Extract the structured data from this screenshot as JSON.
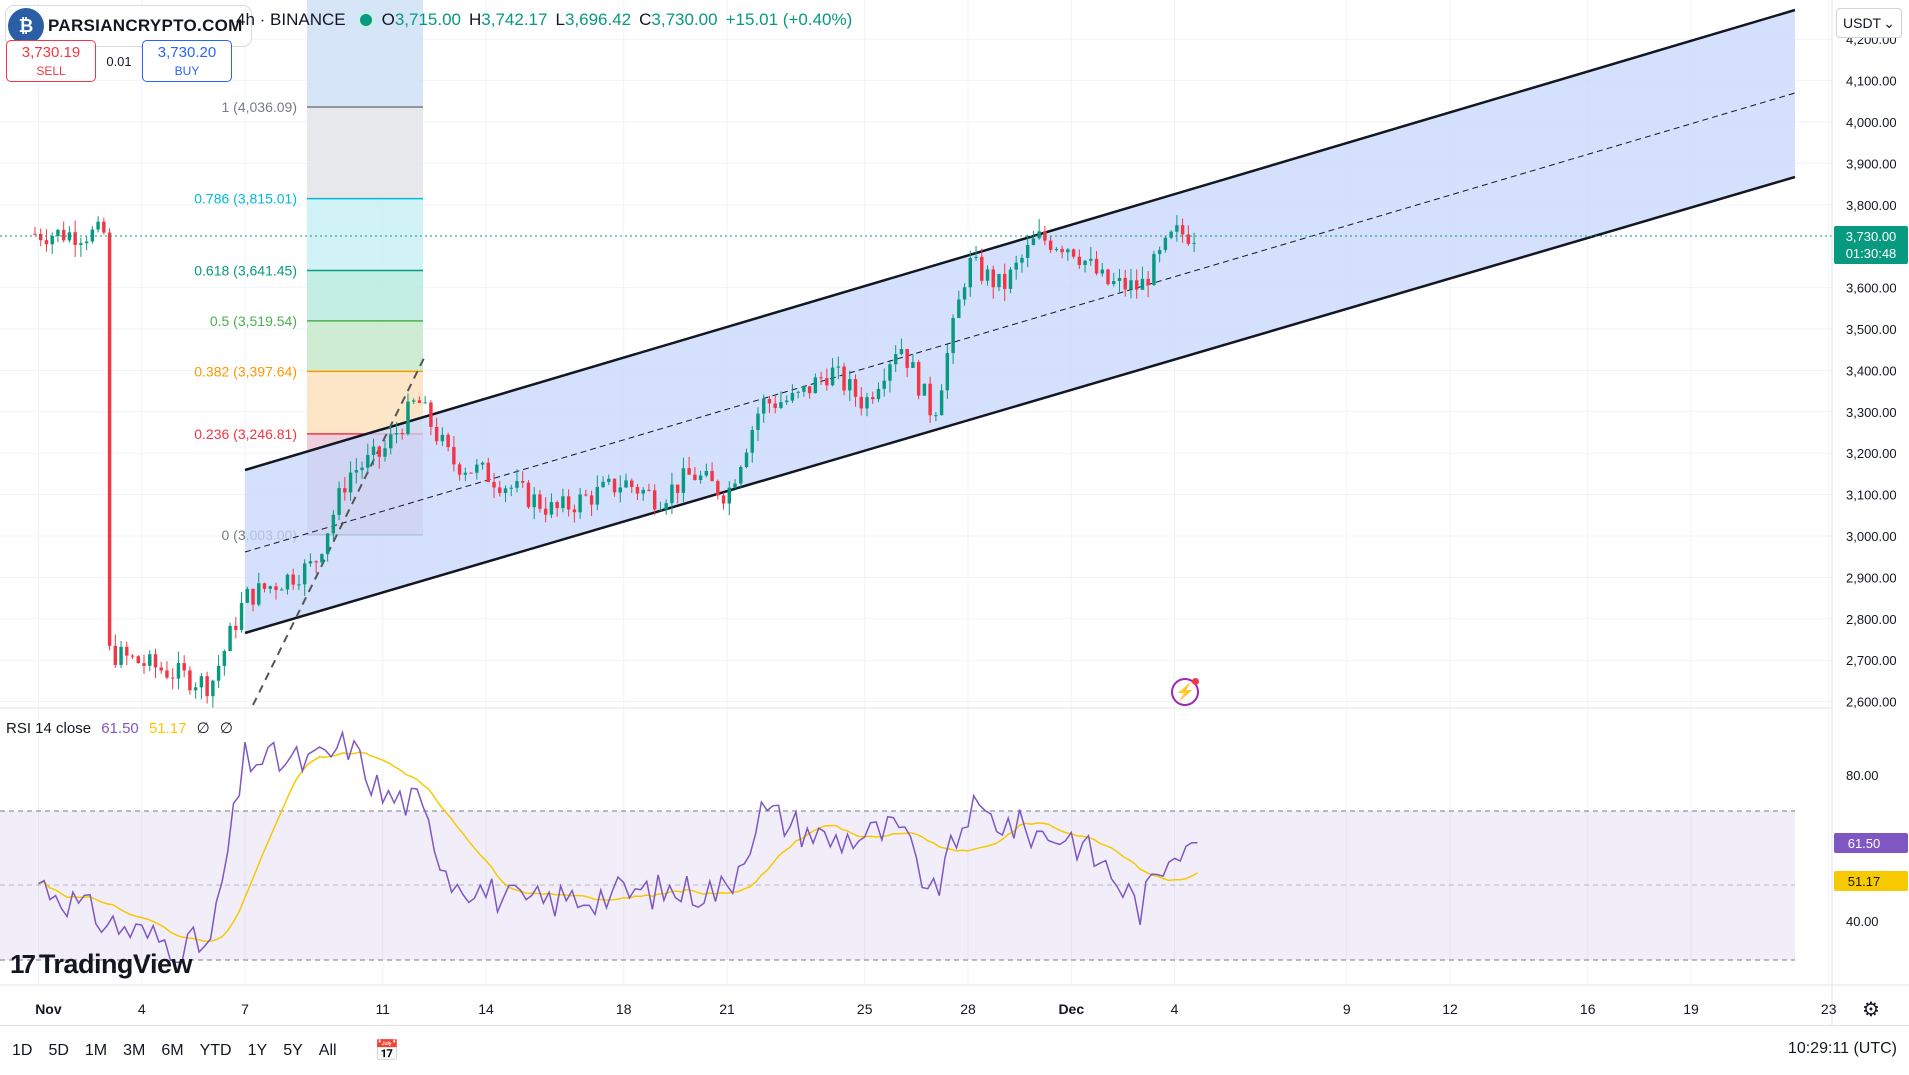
{
  "symbol_header": {
    "interval": "4h · BINANCE",
    "open_label": "O",
    "open": "3,715.00",
    "high_label": "H",
    "high": "3,742.17",
    "low_label": "L",
    "low": "3,696.42",
    "close_label": "C",
    "close": "3,730.00",
    "change": "+15.01 (+0.40%)"
  },
  "watermark_logo": {
    "text": "PARSIANCRYPTO.COM"
  },
  "trade_panel": {
    "sell_price": "3,730.19",
    "sell_label": "SELL",
    "spread": "0.01",
    "buy_price": "3,730.20",
    "buy_label": "BUY"
  },
  "currency_selector": {
    "label": "USDT",
    "icon": "chevron-down-icon"
  },
  "price_axis": {
    "labels": [
      "4,200.00",
      "4,100.00",
      "4,000.00",
      "3,900.00",
      "3,800.00",
      "3,600.00",
      "3,500.00",
      "3,400.00",
      "3,300.00",
      "3,200.00",
      "3,100.00",
      "3,000.00",
      "2,900.00",
      "2,800.00",
      "2,700.00",
      "2,600.00"
    ],
    "current_price": "3,730.00",
    "countdown": "01:30:48"
  },
  "fibonacci": {
    "levels": [
      {
        "label": "1 (4,036.09)",
        "price": 4036.09,
        "color": "#787b86"
      },
      {
        "label": "0.786 (3,815.01)",
        "price": 3815.01,
        "color": "#00bcd4"
      },
      {
        "label": "0.618 (3,641.45)",
        "price": 3641.45,
        "color": "#089981"
      },
      {
        "label": "0.5 (3,519.54)",
        "price": 3519.54,
        "color": "#4caf50"
      },
      {
        "label": "0.382 (3,397.64)",
        "price": 3397.64,
        "color": "#ff9800"
      },
      {
        "label": "0.236 (3,246.81)",
        "price": 3246.81,
        "color": "#f23645"
      },
      {
        "label": "0 (3,003.00)",
        "price": 3003.0,
        "color": "#787b86"
      }
    ]
  },
  "rsi": {
    "title": "RSI 14 close",
    "rsi_value": "61.50",
    "ma_value": "51.17",
    "extra1": "∅",
    "extra2": "∅",
    "axis_labels": [
      "80.00",
      "40.00"
    ]
  },
  "time_axis": {
    "labels": [
      "Nov",
      "4",
      "7",
      "11",
      "14",
      "18",
      "21",
      "25",
      "28",
      "Dec",
      "4",
      "9",
      "12",
      "16",
      "19",
      "23"
    ]
  },
  "tradingview_logo": {
    "text": "TradingView"
  },
  "range_buttons": [
    "1D",
    "5D",
    "1M",
    "3M",
    "6M",
    "YTD",
    "1Y",
    "5Y",
    "All"
  ],
  "clock": "10:29:11 (UTC)",
  "colors": {
    "up": "#089981",
    "down": "#f23645",
    "channel_fill": "#c7d7fb",
    "rsi_line": "#7e57c2",
    "rsi_ma": "#f7c900"
  },
  "icons": [
    "calendar-icon",
    "settings-gear-icon",
    "lightning-icon"
  ],
  "chart_data": {
    "type": "candlestick",
    "symbol_exchange": "BINANCE",
    "interval": "4h",
    "y_range": [
      2570,
      4240
    ],
    "close_anchors": [
      {
        "t": "Nov 3",
        "c": 2720
      },
      {
        "t": "Nov 6",
        "c": 2640
      },
      {
        "t": "Nov 7",
        "c": 2850
      },
      {
        "t": "Nov 9",
        "c": 2930
      },
      {
        "t": "Nov 10",
        "c": 3150
      },
      {
        "t": "Nov 11",
        "c": 3200
      },
      {
        "t": "Nov 12",
        "c": 3330
      },
      {
        "t": "Nov 13",
        "c": 3180
      },
      {
        "t": "Nov 14",
        "c": 3150
      },
      {
        "t": "Nov 16",
        "c": 3060
      },
      {
        "t": "Nov 18",
        "c": 3130
      },
      {
        "t": "Nov 19",
        "c": 3090
      },
      {
        "t": "Nov 20",
        "c": 3150
      },
      {
        "t": "Nov 21",
        "c": 3100
      },
      {
        "t": "Nov 22",
        "c": 3320
      },
      {
        "t": "Nov 23",
        "c": 3330
      },
      {
        "t": "Nov 24",
        "c": 3400
      },
      {
        "t": "Nov 25",
        "c": 3320
      },
      {
        "t": "Nov 26",
        "c": 3470
      },
      {
        "t": "Nov 27",
        "c": 3290
      },
      {
        "t": "Nov 28",
        "c": 3660
      },
      {
        "t": "Nov 29",
        "c": 3600
      },
      {
        "t": "Nov 30",
        "c": 3720
      },
      {
        "t": "Dec 1",
        "c": 3700
      },
      {
        "t": "Dec 2",
        "c": 3610
      },
      {
        "t": "Dec 3",
        "c": 3600
      },
      {
        "t": "Dec 4",
        "c": 3730
      }
    ],
    "rsi_range": [
      28,
      90
    ],
    "rsi_anchors": [
      {
        "t": "Nov 1",
        "v": 51
      },
      {
        "t": "Nov 3",
        "v": 40
      },
      {
        "t": "Nov 5",
        "v": 34
      },
      {
        "t": "Nov 6",
        "v": 34
      },
      {
        "t": "Nov 7",
        "v": 84
      },
      {
        "t": "Nov 9",
        "v": 83
      },
      {
        "t": "Nov 10",
        "v": 88
      },
      {
        "t": "Nov 11",
        "v": 74
      },
      {
        "t": "Nov 12",
        "v": 72
      },
      {
        "t": "Nov 13",
        "v": 52
      },
      {
        "t": "Nov 15",
        "v": 45
      },
      {
        "t": "Nov 18",
        "v": 48
      },
      {
        "t": "Nov 21",
        "v": 49
      },
      {
        "t": "Nov 22",
        "v": 70
      },
      {
        "t": "Nov 24",
        "v": 62
      },
      {
        "t": "Nov 26",
        "v": 65
      },
      {
        "t": "Nov 27",
        "v": 47
      },
      {
        "t": "Nov 28",
        "v": 70
      },
      {
        "t": "Nov 30",
        "v": 64
      },
      {
        "t": "Dec 1",
        "v": 63
      },
      {
        "t": "Dec 2",
        "v": 55
      },
      {
        "t": "Dec 3",
        "v": 44
      },
      {
        "t": "Dec 4",
        "v": 61.5
      }
    ],
    "rsi_overbought": 70,
    "rsi_middle": 50,
    "rsi_oversold": 30
  }
}
